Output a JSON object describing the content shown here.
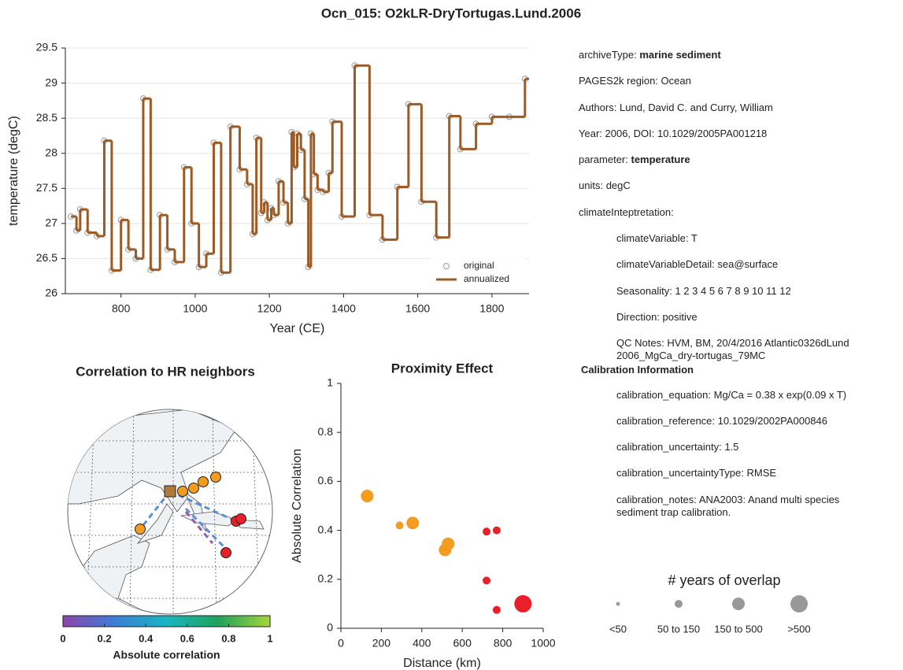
{
  "title": "Ocn_015: O2kLR-DryTortugas.Lund.2006",
  "chart_data": [
    {
      "type": "step",
      "xlabel": "Year (CE)",
      "ylabel": "temperature (degC)",
      "xlim": [
        650,
        1900
      ],
      "xticks": [
        800,
        1000,
        1200,
        1400,
        1600,
        1800
      ],
      "ylim": [
        26,
        29.5
      ],
      "yticks": [
        26,
        26.5,
        27,
        27.5,
        28,
        28.5,
        29,
        29.5
      ],
      "grid": true,
      "legend": "lower right",
      "x": [
        665,
        680,
        690,
        710,
        735,
        755,
        775,
        800,
        820,
        840,
        860,
        880,
        905,
        925,
        945,
        970,
        990,
        1010,
        1030,
        1050,
        1070,
        1095,
        1120,
        1140,
        1155,
        1165,
        1178,
        1186,
        1195,
        1205,
        1212,
        1225,
        1238,
        1250,
        1260,
        1266,
        1275,
        1285,
        1295,
        1305,
        1312,
        1320,
        1330,
        1345,
        1360,
        1370,
        1395,
        1430,
        1470,
        1505,
        1545,
        1575,
        1610,
        1650,
        1685,
        1715,
        1757,
        1800,
        1847,
        1889
      ],
      "series": [
        {
          "name": "original",
          "color": "#999999",
          "marker": "circle",
          "values": [
            27.1,
            26.9,
            27.2,
            26.87,
            26.82,
            28.18,
            26.33,
            27.05,
            26.63,
            26.5,
            28.78,
            26.34,
            27.12,
            26.63,
            26.45,
            27.8,
            27.0,
            26.38,
            26.57,
            28.15,
            26.3,
            28.38,
            27.77,
            27.56,
            26.85,
            28.22,
            27.15,
            27.3,
            27.05,
            27.22,
            27.12,
            27.6,
            27.3,
            27.0,
            28.3,
            27.8,
            28.28,
            28.05,
            27.35,
            26.38,
            28.28,
            27.7,
            27.48,
            27.45,
            27.72,
            28.45,
            27.1,
            29.25,
            27.12,
            26.77,
            27.52,
            28.7,
            27.31,
            26.8,
            28.53,
            28.06,
            28.42,
            28.52,
            28.52,
            29.06
          ]
        },
        {
          "name": "annualized",
          "color": "#9c5b25",
          "marker": "step",
          "values": [
            27.1,
            26.9,
            27.2,
            26.87,
            26.82,
            28.18,
            26.33,
            27.05,
            26.63,
            26.5,
            28.78,
            26.34,
            27.12,
            26.63,
            26.45,
            27.8,
            27.0,
            26.38,
            26.57,
            28.15,
            26.3,
            28.38,
            27.77,
            27.56,
            26.85,
            28.22,
            27.15,
            27.3,
            27.05,
            27.22,
            27.12,
            27.6,
            27.3,
            27.0,
            28.3,
            27.8,
            28.28,
            28.05,
            27.35,
            26.38,
            28.28,
            27.7,
            27.48,
            27.45,
            27.72,
            28.45,
            27.1,
            29.25,
            27.12,
            26.77,
            27.52,
            28.7,
            27.31,
            26.8,
            28.53,
            28.06,
            28.42,
            28.52,
            28.52,
            29.06
          ]
        }
      ]
    },
    {
      "type": "map",
      "title": "Correlation to HR neighbors",
      "colorbar_label": "Absolute correlation",
      "colorbar_lim": [
        0,
        1
      ],
      "colorbar_ticks": [
        0,
        0.2,
        0.4,
        0.6,
        0.8,
        1
      ],
      "colormap": [
        "#8e44ad",
        "#3b7fd8",
        "#19b5c2",
        "#1fa35a",
        "#a5d63a"
      ]
    },
    {
      "type": "scatter",
      "title": "Proximity Effect",
      "xlabel": "Distance (km)",
      "ylabel": "Absolute Correlation",
      "xlim": [
        0,
        1000
      ],
      "xticks": [
        0,
        200,
        400,
        600,
        800,
        1000
      ],
      "ylim": [
        0,
        1
      ],
      "yticks": [
        0,
        0.2,
        0.4,
        0.6,
        0.8,
        1
      ],
      "x": [
        130,
        290,
        355,
        515,
        530,
        720,
        770,
        720,
        770,
        900
      ],
      "values": [
        0.54,
        0.42,
        0.43,
        0.32,
        0.345,
        0.395,
        0.4,
        0.195,
        0.075,
        0.1
      ],
      "colors": [
        "#f39c1f",
        "#f39c1f",
        "#f39c1f",
        "#f39c1f",
        "#f39c1f",
        "#e8202a",
        "#e8202a",
        "#e8202a",
        "#e8202a",
        "#e8202a"
      ],
      "overlap": [
        "150 to 500",
        "50 to 150",
        "150 to 500",
        "150 to 500",
        "150 to 500",
        "50 to 150",
        "50 to 150",
        "50 to 150",
        "50 to 150",
        ">500"
      ],
      "size_legend": {
        "title": "# years of overlap",
        "color": "#999999",
        "labels": [
          "<50",
          "50 to 150",
          "150 to 500",
          ">500"
        ]
      }
    }
  ],
  "metadata": {
    "fields": [
      {
        "key": "archiveType:",
        "value": "marine sediment",
        "bold_value": true
      },
      {
        "key": "PAGES2k region:",
        "value": "Ocean"
      },
      {
        "key": "Authors:",
        "value": "Lund, David C. and Curry, William"
      },
      {
        "key": "Year:",
        "value": "2006, DOI: 10.1029/2005PA001218"
      },
      {
        "key": "parameter:",
        "value": "temperature",
        "bold_value": true
      },
      {
        "key": "units:",
        "value": "degC"
      }
    ],
    "interpretation": {
      "title": "climateInteptretation:",
      "items": [
        {
          "key": "climateVariable:",
          "value": "T"
        },
        {
          "key": "climateVariableDetail:",
          "value": "sea@surface"
        },
        {
          "key": "Seasonality:",
          "value": "1 2 3 4 5 6 7 8 9 10 11 12"
        },
        {
          "key": "Direction:",
          "value": "positive"
        },
        {
          "key": "QC Notes:",
          "value": "HVM, BM, 20/4/2016 Atlantic0326dLund 2006_MgCa_dry-tortugas_79MC"
        }
      ]
    },
    "calibration": {
      "title": "Calibration Information",
      "items": [
        {
          "key": "calibration_equation:",
          "value": "Mg/Ca = 0.38 x exp(0.09 x T)"
        },
        {
          "key": "calibration_reference:",
          "value": "10.1029/2002PA000846"
        },
        {
          "key": "calibration_uncertainty:",
          "value": "1.5"
        },
        {
          "key": "calibration_uncertaintyType:",
          "value": "RMSE"
        },
        {
          "key": "calibration_notes:",
          "value": "ANA2003: Anand multi species sediment trap calibration."
        }
      ]
    }
  }
}
